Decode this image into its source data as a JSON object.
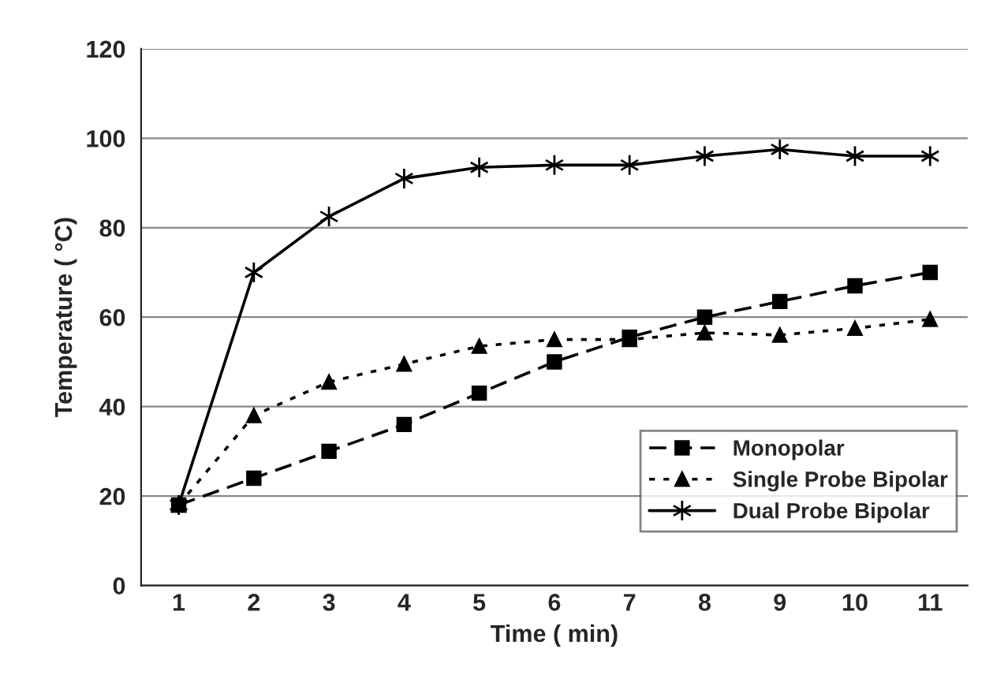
{
  "chart_data": {
    "type": "line",
    "xlabel": "Time ( min)",
    "ylabel": "Temperature ( °C)",
    "categories": [
      "1",
      "2",
      "3",
      "4",
      "5",
      "6",
      "7",
      "8",
      "9",
      "10",
      "11"
    ],
    "series": [
      {
        "name": "Monopolar",
        "color": "#000000",
        "marker": "square",
        "line_style": "dashed",
        "values": [
          18,
          24,
          30,
          36,
          43,
          50,
          55.5,
          60,
          63.5,
          67,
          70
        ]
      },
      {
        "name": "Single Probe Bipolar",
        "color": "#000000",
        "marker": "triangle",
        "line_style": "dotted",
        "values": [
          18,
          38,
          45.5,
          49.5,
          53.5,
          55,
          55,
          56.5,
          56,
          57.5,
          59.5
        ]
      },
      {
        "name": "Dual Probe Bipolar",
        "color": "#000000",
        "marker": "cross",
        "line_style": "solid",
        "values": [
          18,
          70,
          82.5,
          91,
          93.5,
          94,
          94,
          96,
          97.5,
          96,
          96
        ]
      }
    ],
    "ylim": [
      0,
      120
    ],
    "yticks": [
      0,
      20,
      40,
      60,
      80,
      100,
      120
    ],
    "grid": "y",
    "legend": "bottom right"
  }
}
